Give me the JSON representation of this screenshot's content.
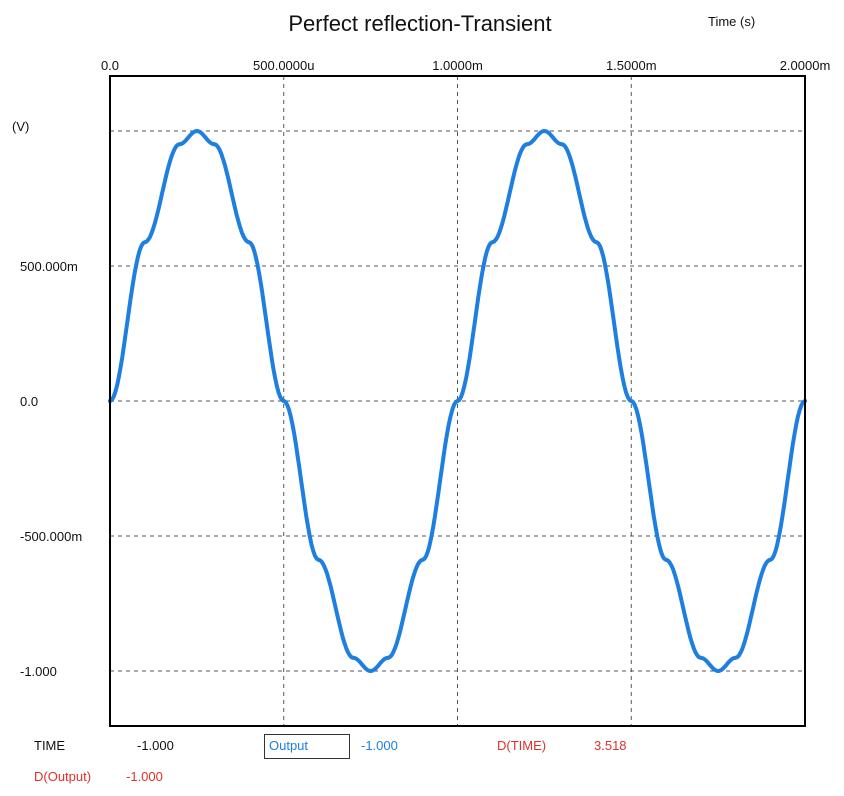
{
  "colors": {
    "series": "#1e7fe0",
    "label_red": "#e0302a",
    "frame": "#000000",
    "grid": "#555555",
    "text": "#111111"
  },
  "chart_data": {
    "type": "line",
    "title": "Perfect reflection-Transient",
    "xlabel": "Time  (s)",
    "ylabel": "(V)",
    "x_axis_position": "top",
    "xlim": [
      0,
      0.002
    ],
    "ylim": [
      -1.2,
      1.0
    ],
    "grid": true,
    "legend_position": "bottom-left",
    "x_ticks": [
      {
        "value": 0,
        "label": "0.0"
      },
      {
        "value": 0.0005,
        "label": "500.0000u"
      },
      {
        "value": 0.001,
        "label": "1.0000m"
      },
      {
        "value": 0.0015,
        "label": "1.5000m"
      },
      {
        "value": 0.002,
        "label": "2.0000m"
      }
    ],
    "y_ticks": [
      {
        "value": 1.0,
        "label": ""
      },
      {
        "value": 0.5,
        "label": "500.000m"
      },
      {
        "value": 0,
        "label": "0.0"
      },
      {
        "value": -0.5,
        "label": "-500.000m"
      },
      {
        "value": -1.0,
        "label": "-1.000"
      }
    ],
    "series": [
      {
        "name": "Output",
        "x": [
          0,
          0.0001,
          0.0002,
          0.00025,
          0.0003,
          0.0004,
          0.0005,
          0.0006,
          0.0007,
          0.00075,
          0.0008,
          0.0009,
          0.001,
          0.0011,
          0.0012,
          0.00125,
          0.0013,
          0.0014,
          0.0015,
          0.0016,
          0.0017,
          0.00175,
          0.0018,
          0.0019,
          0.002
        ],
        "y": [
          0,
          0.588,
          0.951,
          1.0,
          0.951,
          0.588,
          0,
          -0.588,
          -0.951,
          -1.0,
          -0.951,
          -0.588,
          0,
          0.588,
          0.951,
          1.0,
          0.951,
          0.588,
          0,
          -0.588,
          -0.951,
          -1.0,
          -0.951,
          -0.588,
          0
        ]
      }
    ]
  },
  "readouts": {
    "time_label": "TIME",
    "time_value": "-1.000",
    "output_label": "Output",
    "output_value": "-1.000",
    "dtime_label": "D(TIME)",
    "dtime_value": "3.518",
    "doutput_label": "D(Output)",
    "doutput_value": "-1.000"
  }
}
